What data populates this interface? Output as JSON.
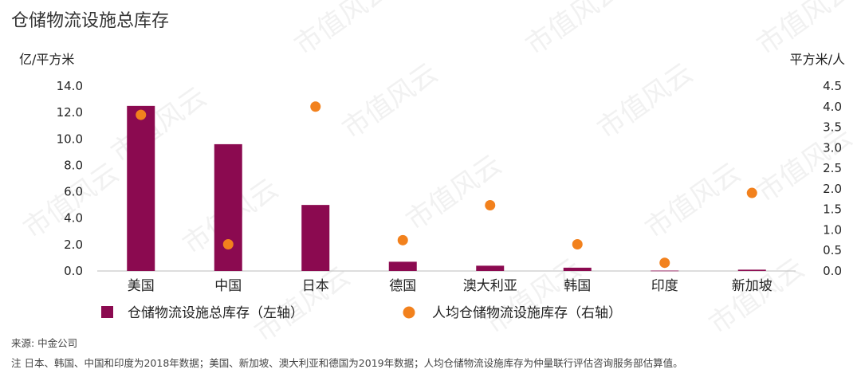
{
  "title": "仓储物流设施总库存",
  "chart_data": {
    "type": "bar",
    "categories": [
      "美国",
      "中国",
      "日本",
      "德国",
      "澳大利亚",
      "韩国",
      "印度",
      "新加坡"
    ],
    "series": [
      {
        "name": "仓储物流设施总库存（左轴）",
        "type": "bar",
        "axis": "left",
        "values": [
          12.5,
          9.6,
          5.0,
          0.7,
          0.4,
          0.25,
          0.03,
          0.1
        ],
        "color": "#8b0a50"
      },
      {
        "name": "人均仓储物流设施库存（右轴）",
        "type": "scatter",
        "axis": "right",
        "values": [
          3.8,
          0.65,
          4.0,
          0.75,
          1.6,
          0.65,
          0.2,
          1.9
        ],
        "color": "#f2811d"
      }
    ],
    "y_left": {
      "label": "亿/平方米",
      "min": 0,
      "max": 14,
      "step": 2,
      "ticks": [
        "0.0",
        "2.0",
        "4.0",
        "6.0",
        "8.0",
        "10.0",
        "12.0",
        "14.0"
      ]
    },
    "y_right": {
      "label": "平方米/人",
      "min": 0,
      "max": 4.5,
      "step": 0.5,
      "ticks": [
        "0.0",
        "0.5",
        "1.0",
        "1.5",
        "2.0",
        "2.5",
        "3.0",
        "3.5",
        "4.0",
        "4.5"
      ]
    },
    "grid": false,
    "legend_position": "bottom"
  },
  "watermark": "市值风云",
  "source": "来源: 中金公司",
  "note": "注 日本、韩国、中国和印度为2018年数据；美国、新加坡、澳大利亚和德国为2019年数据；人均仓储物流设施库存为仲量联行评估咨询服务部估算值。"
}
